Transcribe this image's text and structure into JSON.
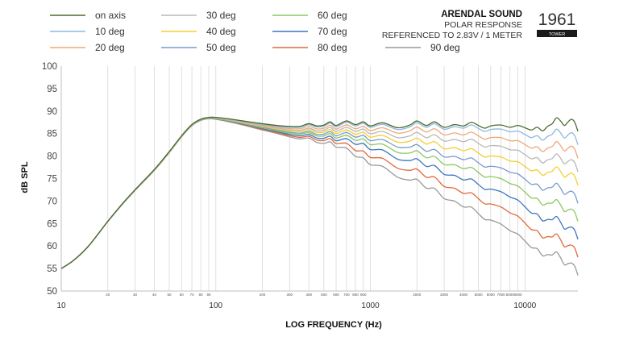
{
  "chart_data": {
    "type": "line",
    "title": "ARENDAL SOUND",
    "subtitle_lines": [
      "POLAR RESPONSE",
      "REFERENCED TO 2.83V / 1 METER"
    ],
    "badge": {
      "model": "1961",
      "variant": "TOWER"
    },
    "xlabel": "LOG FREQUENCY (Hz)",
    "ylabel": "dB SPL",
    "xscale": "log",
    "xlim": [
      10,
      22000
    ],
    "ylim": [
      50,
      100
    ],
    "yticks": [
      50,
      55,
      60,
      65,
      70,
      75,
      80,
      85,
      90,
      95,
      100
    ],
    "xticks_major": [
      {
        "value": 10,
        "label": "10"
      },
      {
        "value": 100,
        "label": "100"
      },
      {
        "value": 1000,
        "label": "1000"
      },
      {
        "value": 10000,
        "label": "10000"
      }
    ],
    "xticks_minor": [
      20,
      30,
      40,
      50,
      60,
      70,
      80,
      90,
      200,
      300,
      400,
      500,
      600,
      700,
      800,
      900,
      2000,
      3000,
      4000,
      5000,
      6000,
      7000,
      8000,
      9000
    ],
    "grid": "vertical",
    "series": [
      {
        "name": "on axis",
        "color": "#4a6b2e",
        "offsets": [
          0,
          0,
          0,
          0,
          0,
          0,
          0,
          0,
          0,
          0,
          0,
          0
        ]
      },
      {
        "name": "10 deg",
        "color": "#8fb8e0",
        "offsets": [
          0,
          0,
          -0.1,
          -0.2,
          -0.2,
          -0.3,
          -0.3,
          -0.4,
          -0.4,
          -0.5,
          -1.0,
          -3.0
        ]
      },
      {
        "name": "20 deg",
        "color": "#f0a878",
        "offsets": [
          0,
          0,
          -0.2,
          -0.4,
          -0.6,
          -0.8,
          -1.0,
          -1.2,
          -1.5,
          -2.0,
          -3.0,
          -6.0
        ]
      },
      {
        "name": "30 deg",
        "color": "#b8b8b8",
        "offsets": [
          0,
          -0.1,
          -0.3,
          -0.6,
          -1.0,
          -1.3,
          -1.6,
          -2.2,
          -2.8,
          -3.5,
          -5.0,
          -9.0
        ]
      },
      {
        "name": "40 deg",
        "color": "#f2d030",
        "offsets": [
          0,
          -0.1,
          -0.4,
          -0.8,
          -1.3,
          -1.8,
          -2.3,
          -3.2,
          -4.3,
          -5.5,
          -7.5,
          -12.0
        ]
      },
      {
        "name": "50 deg",
        "color": "#7a9acc",
        "offsets": [
          0,
          -0.1,
          -0.5,
          -1.0,
          -1.7,
          -2.3,
          -3.0,
          -4.3,
          -6.0,
          -7.5,
          -10.0,
          -16.0
        ]
      },
      {
        "name": "60 deg",
        "color": "#8cc860",
        "offsets": [
          0,
          -0.2,
          -0.6,
          -1.2,
          -2.0,
          -2.8,
          -3.8,
          -5.5,
          -7.5,
          -9.5,
          -12.5,
          -20.0
        ]
      },
      {
        "name": "70 deg",
        "color": "#3e76c0",
        "offsets": [
          0,
          -0.2,
          -0.7,
          -1.4,
          -2.4,
          -3.4,
          -4.8,
          -7.0,
          -9.5,
          -12.0,
          -15.5,
          -24.0
        ]
      },
      {
        "name": "80 deg",
        "color": "#e0683a",
        "offsets": [
          0,
          -0.2,
          -0.8,
          -1.6,
          -2.8,
          -4.0,
          -6.5,
          -9.0,
          -12.0,
          -15.0,
          -19.0,
          -28.0
        ]
      },
      {
        "name": "90 deg",
        "color": "#999999",
        "offsets": [
          0,
          -0.3,
          -0.9,
          -1.8,
          -3.2,
          -4.8,
          -8.0,
          -11.0,
          -14.5,
          -18.0,
          -23.0,
          -32.0
        ]
      }
    ],
    "offset_freqs": [
      10,
      90,
      150,
      250,
      400,
      600,
      900,
      1500,
      2500,
      4000,
      8000,
      20000
    ],
    "on_axis": {
      "freq": [
        10,
        12,
        15,
        20,
        25,
        30,
        40,
        50,
        60,
        70,
        80,
        90,
        100,
        120,
        150,
        200,
        250,
        300,
        350,
        400,
        450,
        500,
        550,
        600,
        700,
        800,
        900,
        1000,
        1200,
        1500,
        1800,
        2000,
        2300,
        2600,
        3000,
        3500,
        4000,
        4500,
        5000,
        5500,
        6000,
        7000,
        8000,
        9000,
        10000,
        11000,
        12000,
        13000,
        14000,
        15000,
        16000,
        17000,
        18000,
        19000,
        20000,
        21000,
        22000
      ],
      "spl": [
        55,
        56.8,
        60,
        65.5,
        69.5,
        72.5,
        77,
        81,
        84.5,
        87,
        88.2,
        88.6,
        88.6,
        88.3,
        87.8,
        87.2,
        86.8,
        86.6,
        86.6,
        87.2,
        86.7,
        86.9,
        87.6,
        86.8,
        87.8,
        87.0,
        87.6,
        86.7,
        87.4,
        86.3,
        86.9,
        87.8,
        86.8,
        87.6,
        86.4,
        87.0,
        86.7,
        87.5,
        86.8,
        86.2,
        86.7,
        86.9,
        86.4,
        86.8,
        86.3,
        85.8,
        86.4,
        85.6,
        86.6,
        87.2,
        88.5,
        87.8,
        86.8,
        87.6,
        88.2,
        87.5,
        85.5
      ]
    }
  }
}
